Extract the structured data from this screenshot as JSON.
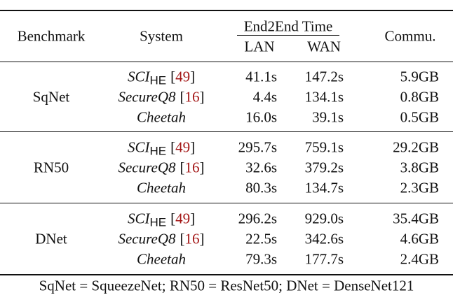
{
  "header": {
    "benchmark": "Benchmark",
    "system": "System",
    "time": "End2End Time",
    "lan": "LAN",
    "wan": "WAN",
    "commu": "Commu."
  },
  "groups": [
    {
      "benchmark": "SqNet",
      "rows": [
        {
          "system": {
            "name": "SCI",
            "sub": "HE",
            "cite": "[49]"
          },
          "lan": "41.1s",
          "wan": "147.2s",
          "commu": "5.9GB"
        },
        {
          "system": {
            "name": "SecureQ8",
            "cite": "[16]"
          },
          "lan": "4.4s",
          "wan": "134.1s",
          "commu": "0.8GB"
        },
        {
          "system": {
            "name": "Cheetah"
          },
          "lan": "16.0s",
          "wan": "39.1s",
          "commu": "0.5GB"
        }
      ]
    },
    {
      "benchmark": "RN50",
      "rows": [
        {
          "system": {
            "name": "SCI",
            "sub": "HE",
            "cite": "[49]"
          },
          "lan": "295.7s",
          "wan": "759.1s",
          "commu": "29.2GB"
        },
        {
          "system": {
            "name": "SecureQ8",
            "cite": "[16]"
          },
          "lan": "32.6s",
          "wan": "379.2s",
          "commu": "3.8GB"
        },
        {
          "system": {
            "name": "Cheetah"
          },
          "lan": "80.3s",
          "wan": "134.7s",
          "commu": "2.3GB"
        }
      ]
    },
    {
      "benchmark": "DNet",
      "rows": [
        {
          "system": {
            "name": "SCI",
            "sub": "HE",
            "cite": "[49]"
          },
          "lan": "296.2s",
          "wan": "929.0s",
          "commu": "35.4GB"
        },
        {
          "system": {
            "name": "SecureQ8",
            "cite": "[16]"
          },
          "lan": "22.5s",
          "wan": "342.6s",
          "commu": "4.6GB"
        },
        {
          "system": {
            "name": "Cheetah"
          },
          "lan": "79.3s",
          "wan": "177.7s",
          "commu": "2.4GB"
        }
      ]
    }
  ],
  "footnote": "SqNet = SqueezeNet; RN50 = ResNet50; DNet = DenseNet121"
}
